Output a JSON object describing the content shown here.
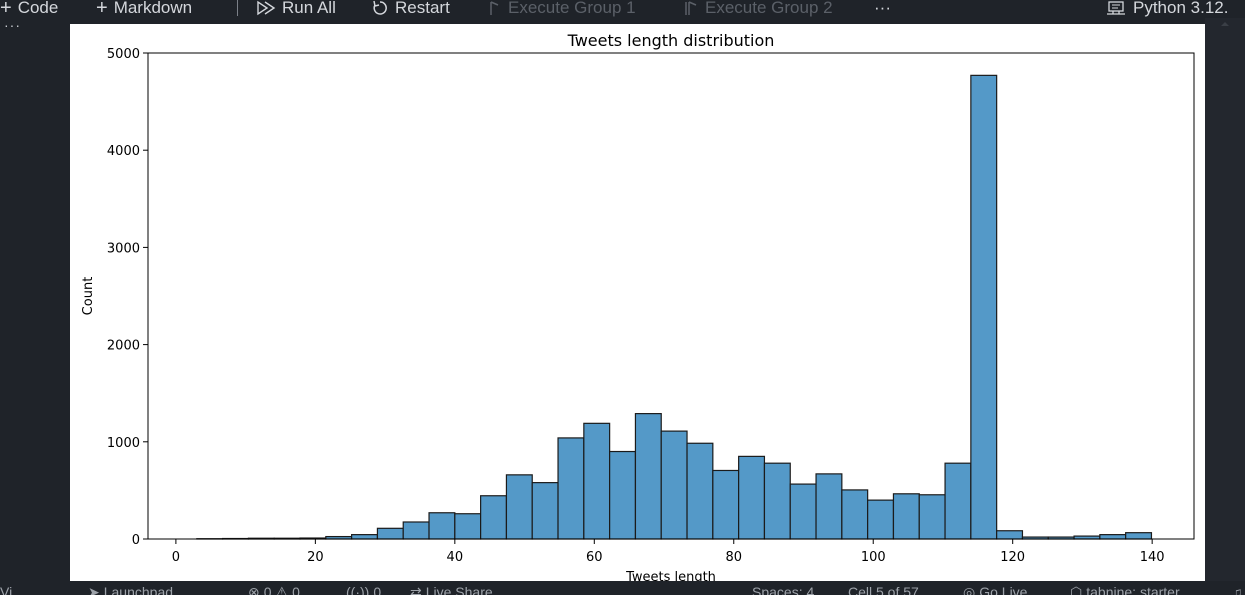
{
  "toolbar": {
    "code_label": "Code",
    "markdown_label": "Markdown",
    "run_all_label": "Run All",
    "restart_label": "Restart",
    "execute_group_1_label": "Execute Group 1",
    "execute_group_2_label": "Execute Group 2",
    "more_label": "···",
    "kernel_label": "Python 3.12."
  },
  "cell": {
    "more_label": "···"
  },
  "statusbar": {
    "left_view": "Vi",
    "launchpad": "Launchpad",
    "problems": "0",
    "warnings": "0",
    "ports": "0",
    "live_share": "Live Share",
    "spaces": "Spaces: 4",
    "cell_position": "Cell 5 of 57",
    "go_live": "Go Live",
    "tabnine": "tabnine: starter"
  },
  "chart_data": {
    "type": "bar",
    "title": "Tweets length distribution",
    "xlabel": "Tweets length",
    "ylabel": "Count",
    "xlim": [
      -4,
      146
    ],
    "ylim": [
      0,
      5000
    ],
    "xticks": [
      0,
      20,
      40,
      60,
      80,
      100,
      120,
      140
    ],
    "yticks": [
      0,
      1000,
      2000,
      3000,
      4000,
      5000
    ],
    "bar_color": "#5499c8",
    "bar_edge_color": "#1b1b1b",
    "bins": [
      {
        "start": 3.0,
        "end": 6.7,
        "value": 3
      },
      {
        "start": 6.7,
        "end": 10.4,
        "value": 5
      },
      {
        "start": 10.4,
        "end": 14.1,
        "value": 8
      },
      {
        "start": 14.1,
        "end": 17.8,
        "value": 8
      },
      {
        "start": 17.8,
        "end": 21.5,
        "value": 10
      },
      {
        "start": 21.5,
        "end": 25.2,
        "value": 25
      },
      {
        "start": 25.2,
        "end": 28.9,
        "value": 45
      },
      {
        "start": 28.9,
        "end": 32.6,
        "value": 110
      },
      {
        "start": 32.6,
        "end": 36.3,
        "value": 175
      },
      {
        "start": 36.3,
        "end": 40.0,
        "value": 270
      },
      {
        "start": 40.0,
        "end": 43.7,
        "value": 260
      },
      {
        "start": 43.7,
        "end": 47.4,
        "value": 445
      },
      {
        "start": 47.4,
        "end": 51.1,
        "value": 660
      },
      {
        "start": 51.1,
        "end": 54.8,
        "value": 580
      },
      {
        "start": 54.8,
        "end": 58.5,
        "value": 1040
      },
      {
        "start": 58.5,
        "end": 62.2,
        "value": 1190
      },
      {
        "start": 62.2,
        "end": 65.9,
        "value": 900
      },
      {
        "start": 65.9,
        "end": 69.6,
        "value": 1290
      },
      {
        "start": 69.6,
        "end": 73.3,
        "value": 1110
      },
      {
        "start": 73.3,
        "end": 77.0,
        "value": 985
      },
      {
        "start": 77.0,
        "end": 80.7,
        "value": 705
      },
      {
        "start": 80.7,
        "end": 84.4,
        "value": 850
      },
      {
        "start": 84.4,
        "end": 88.1,
        "value": 780
      },
      {
        "start": 88.1,
        "end": 91.8,
        "value": 565
      },
      {
        "start": 91.8,
        "end": 95.5,
        "value": 670
      },
      {
        "start": 95.5,
        "end": 99.2,
        "value": 505
      },
      {
        "start": 99.2,
        "end": 102.9,
        "value": 400
      },
      {
        "start": 102.9,
        "end": 106.6,
        "value": 465
      },
      {
        "start": 106.6,
        "end": 110.3,
        "value": 455
      },
      {
        "start": 110.3,
        "end": 114.0,
        "value": 780
      },
      {
        "start": 114.0,
        "end": 117.7,
        "value": 4770
      },
      {
        "start": 117.7,
        "end": 121.4,
        "value": 85
      },
      {
        "start": 121.4,
        "end": 125.1,
        "value": 20
      },
      {
        "start": 125.1,
        "end": 128.8,
        "value": 20
      },
      {
        "start": 128.8,
        "end": 132.5,
        "value": 30
      },
      {
        "start": 132.5,
        "end": 136.2,
        "value": 45
      },
      {
        "start": 136.2,
        "end": 139.9,
        "value": 65
      }
    ]
  }
}
